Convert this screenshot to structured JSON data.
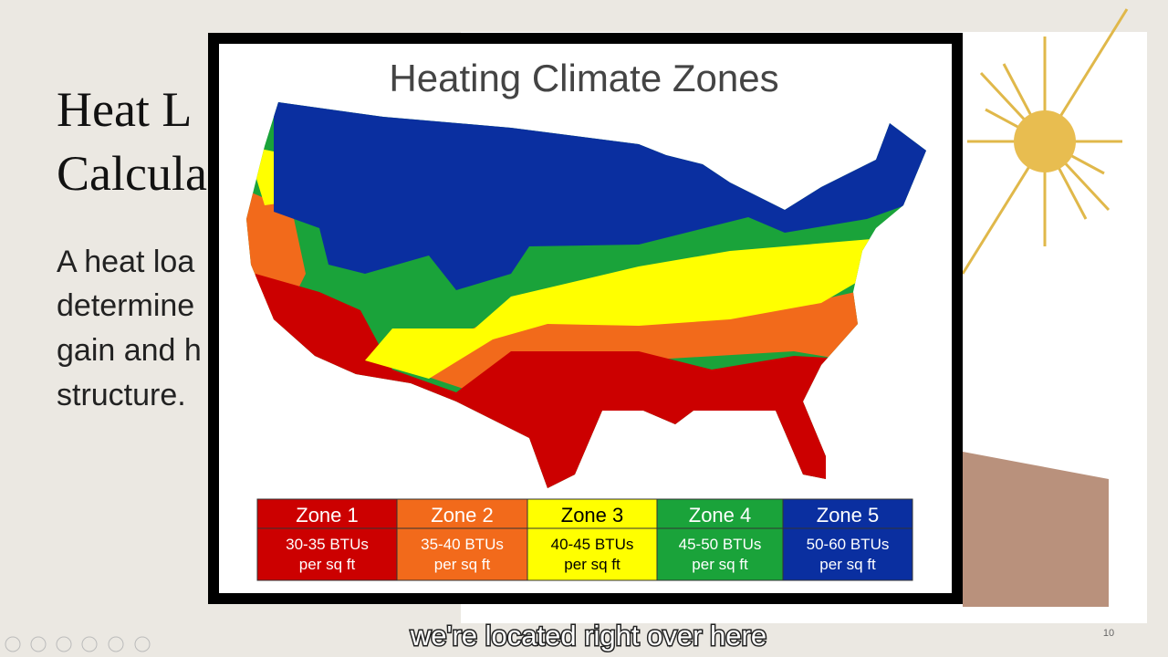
{
  "slide": {
    "title_lines": [
      "Heat L",
      "Calcula"
    ],
    "body_lines": [
      "A heat loa",
      "determine",
      "gain and h",
      "structure."
    ],
    "slide_number": "10"
  },
  "image": {
    "title": "Heating Climate Zones",
    "zones": [
      {
        "name": "Zone 1",
        "lines": [
          "30-35 BTUs",
          "per sq ft"
        ]
      },
      {
        "name": "Zone 2",
        "lines": [
          "35-40 BTUs",
          "per sq ft"
        ]
      },
      {
        "name": "Zone 3",
        "lines": [
          "40-45  BTUs",
          "per sq ft"
        ]
      },
      {
        "name": "Zone 4",
        "lines": [
          "45-50 BTUs",
          "per sq ft"
        ]
      },
      {
        "name": "Zone 5",
        "lines": [
          "50-60 BTUs",
          "per sq ft"
        ]
      }
    ]
  },
  "caption": "we're located right over here"
}
